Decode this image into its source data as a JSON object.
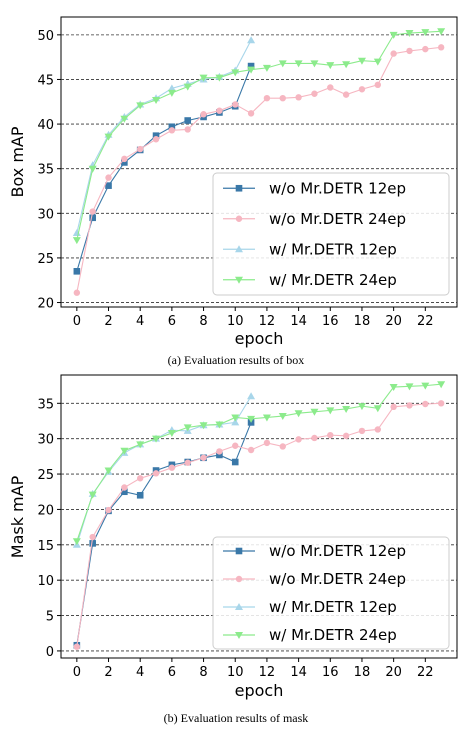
{
  "chart_data": [
    {
      "type": "line",
      "caption": "(a) Evaluation results of box",
      "xlabel": "epoch",
      "ylabel": "Box mAP",
      "xlim": [
        -1,
        24
      ],
      "ylim": [
        19.5,
        52
      ],
      "xticks": [
        0,
        2,
        4,
        6,
        8,
        10,
        12,
        14,
        16,
        18,
        20,
        22
      ],
      "yticks": [
        20,
        25,
        30,
        35,
        40,
        45,
        50
      ],
      "grid": "horizontal dashed",
      "legend_position": "lower-right",
      "series": [
        {
          "name": "w/o Mr.DETR 12ep",
          "color": "#3a78a8",
          "marker": "square",
          "x": [
            0,
            1,
            2,
            3,
            4,
            5,
            6,
            7,
            8,
            9,
            10,
            11
          ],
          "y": [
            23.5,
            29.5,
            33.1,
            35.7,
            37.1,
            38.7,
            39.7,
            40.4,
            40.8,
            41.3,
            42.0,
            46.5
          ]
        },
        {
          "name": "w/o Mr.DETR 24ep",
          "color": "#f6b6c1",
          "marker": "circle",
          "x": [
            0,
            1,
            2,
            3,
            4,
            5,
            6,
            7,
            8,
            9,
            10,
            11,
            12,
            13,
            14,
            15,
            16,
            17,
            18,
            19,
            20,
            21,
            22,
            23
          ],
          "y": [
            21.1,
            30.2,
            34.0,
            36.1,
            37.2,
            38.3,
            39.3,
            39.4,
            41.1,
            41.5,
            42.2,
            41.2,
            42.9,
            42.9,
            43.0,
            43.4,
            44.1,
            43.3,
            43.9,
            44.4,
            47.9,
            48.2,
            48.4,
            48.6
          ]
        },
        {
          "name": "w/ Mr.DETR 12ep",
          "color": "#a8d6ea",
          "marker": "triangle-up",
          "x": [
            0,
            1,
            2,
            3,
            4,
            5,
            6,
            7,
            8,
            9,
            10,
            11
          ],
          "y": [
            27.8,
            35.4,
            38.8,
            40.8,
            42.2,
            42.9,
            44.0,
            44.5,
            45.0,
            45.3,
            46.0,
            49.4
          ]
        },
        {
          "name": "w/ Mr.DETR 24ep",
          "color": "#8ceb8c",
          "marker": "triangle-down",
          "x": [
            0,
            1,
            2,
            3,
            4,
            5,
            6,
            7,
            8,
            9,
            10,
            11,
            12,
            13,
            14,
            15,
            16,
            17,
            18,
            19,
            20,
            21,
            22,
            23
          ],
          "y": [
            27.0,
            35.0,
            38.6,
            40.6,
            42.1,
            42.7,
            43.5,
            44.2,
            45.2,
            45.2,
            45.8,
            46.1,
            46.3,
            46.8,
            46.8,
            46.8,
            46.6,
            46.7,
            47.1,
            47.0,
            50.0,
            50.2,
            50.3,
            50.4
          ]
        }
      ]
    },
    {
      "type": "line",
      "caption": "(b) Evaluation results of mask",
      "xlabel": "epoch",
      "ylabel": "Mask mAP",
      "xlim": [
        -1,
        24
      ],
      "ylim": [
        -1,
        39
      ],
      "xticks": [
        0,
        2,
        4,
        6,
        8,
        10,
        12,
        14,
        16,
        18,
        20,
        22
      ],
      "yticks": [
        0,
        5,
        10,
        15,
        20,
        25,
        30,
        35
      ],
      "grid": "horizontal dashed",
      "legend_position": "lower-right",
      "series": [
        {
          "name": "w/o Mr.DETR 12ep",
          "color": "#3a78a8",
          "marker": "square",
          "x": [
            0,
            1,
            2,
            3,
            4,
            5,
            6,
            7,
            8,
            9,
            10,
            11
          ],
          "y": [
            0.8,
            15.2,
            19.8,
            22.5,
            22.0,
            25.5,
            26.3,
            26.7,
            27.3,
            27.7,
            26.7,
            32.3
          ]
        },
        {
          "name": "w/o Mr.DETR 24ep",
          "color": "#f6b6c1",
          "marker": "circle",
          "x": [
            0,
            1,
            2,
            3,
            4,
            5,
            6,
            7,
            8,
            9,
            10,
            11,
            12,
            13,
            14,
            15,
            16,
            17,
            18,
            19,
            20,
            21,
            22,
            23
          ],
          "y": [
            0.6,
            16.1,
            19.9,
            23.1,
            24.4,
            25.1,
            25.9,
            26.6,
            27.3,
            28.2,
            29.0,
            28.4,
            29.4,
            28.9,
            29.9,
            30.1,
            30.5,
            30.4,
            31.1,
            31.3,
            34.5,
            34.7,
            34.9,
            35.0
          ]
        },
        {
          "name": "w/ Mr.DETR 12ep",
          "color": "#a8d6ea",
          "marker": "triangle-up",
          "x": [
            0,
            1,
            2,
            3,
            4,
            5,
            6,
            7,
            8,
            9,
            10,
            11
          ],
          "y": [
            15.0,
            22.2,
            25.3,
            28.0,
            29.2,
            30.0,
            31.2,
            31.1,
            31.9,
            32.0,
            32.3,
            36.0
          ]
        },
        {
          "name": "w/ Mr.DETR 24ep",
          "color": "#8ceb8c",
          "marker": "triangle-down",
          "x": [
            0,
            1,
            2,
            3,
            4,
            5,
            6,
            7,
            8,
            9,
            10,
            11,
            12,
            13,
            14,
            15,
            16,
            17,
            18,
            19,
            20,
            21,
            22,
            23
          ],
          "y": [
            15.5,
            22.1,
            25.5,
            28.3,
            29.2,
            30.0,
            30.8,
            31.6,
            31.9,
            32.0,
            33.0,
            32.8,
            33.0,
            33.2,
            33.6,
            33.8,
            34.0,
            34.2,
            34.6,
            34.3,
            37.3,
            37.4,
            37.5,
            37.7
          ]
        }
      ]
    }
  ]
}
